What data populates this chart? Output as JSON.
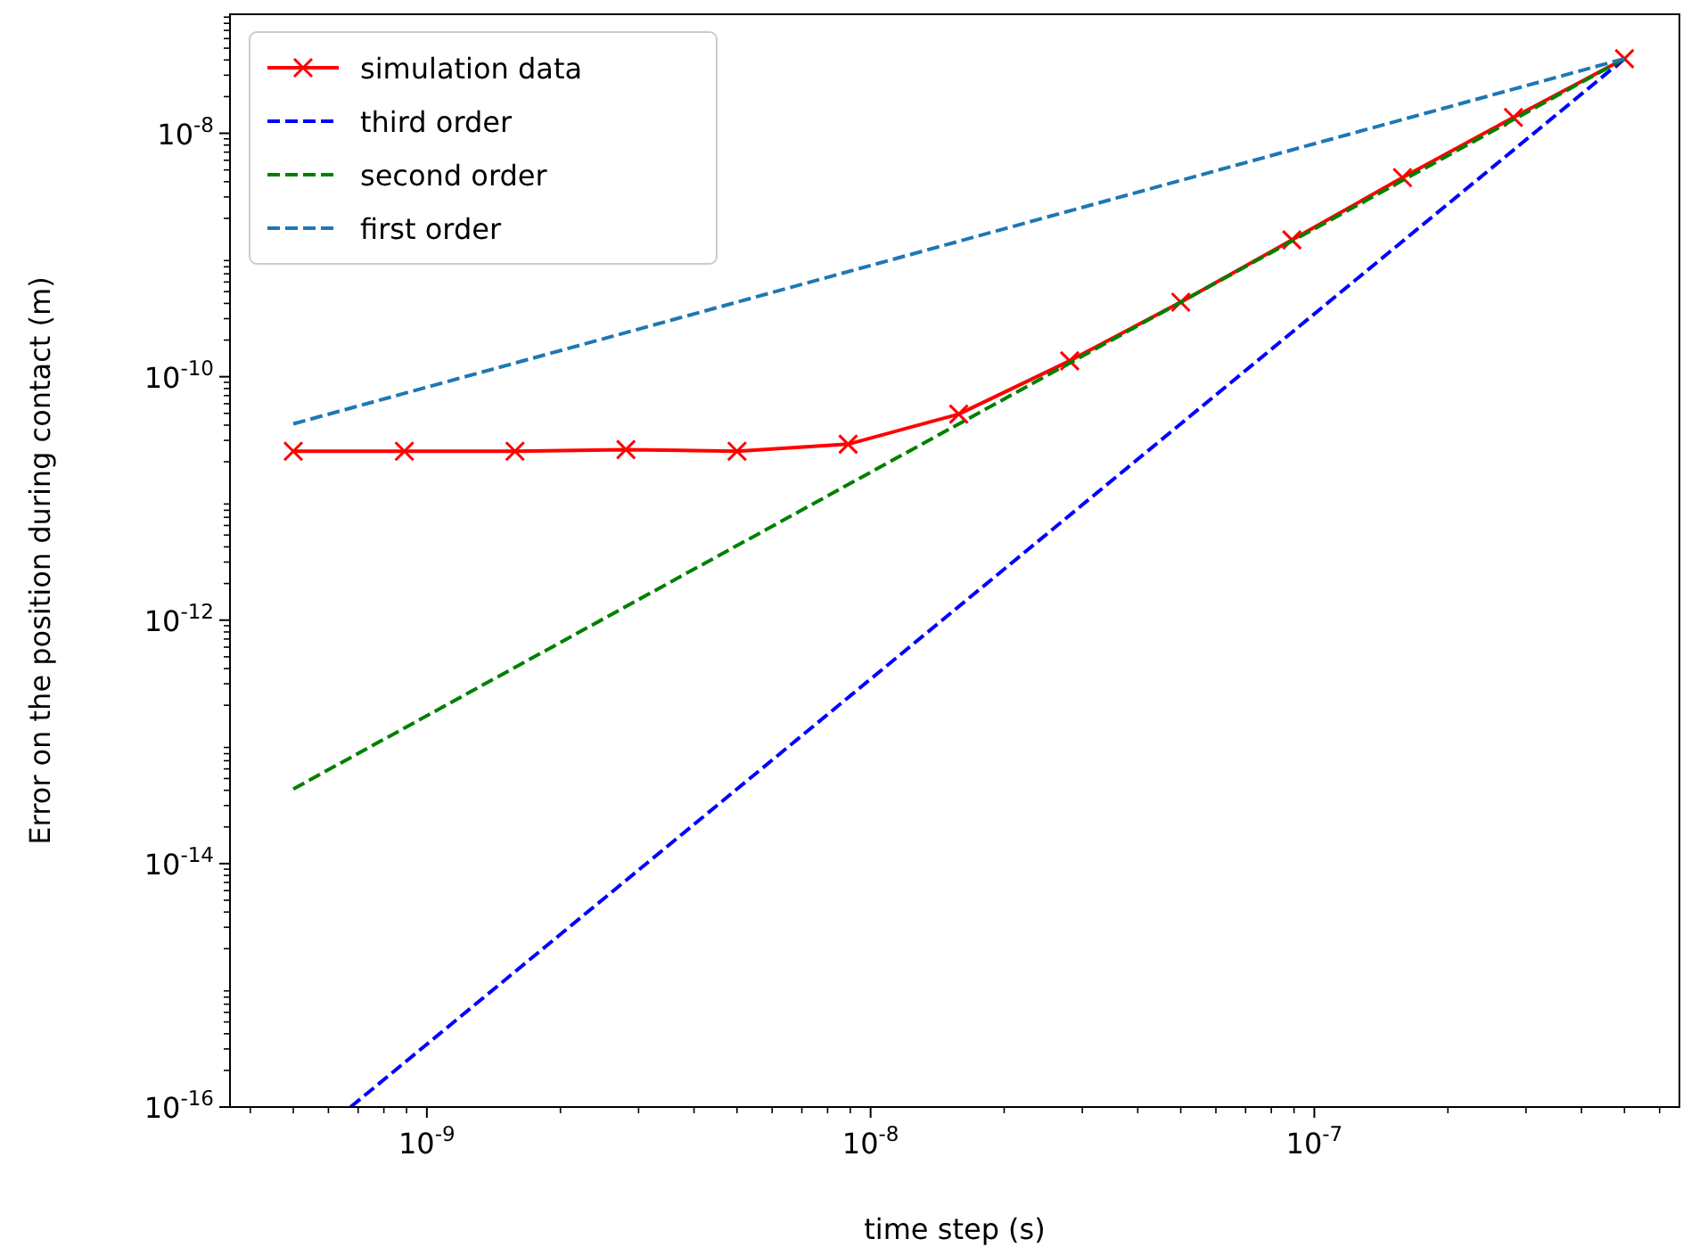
{
  "chart_data": {
    "type": "line",
    "xlabel": "time step (s)",
    "ylabel": "Error on the position during contact (m)",
    "log": "xy",
    "xlim": [
      3.6e-10,
      6.65e-07
    ],
    "ylim": [
      1e-16,
      9.5e-08
    ],
    "xticks": [
      {
        "value": 1e-09,
        "label": "10$^{-9}$"
      },
      {
        "value": 1e-08,
        "label": "10$^{-8}$"
      },
      {
        "value": 1e-07,
        "label": "10$^{-7}$"
      }
    ],
    "yticks": [
      {
        "value": 1e-16,
        "label": "10$^{-16}$"
      },
      {
        "value": 1e-14,
        "label": "10$^{-14}$"
      },
      {
        "value": 1e-12,
        "label": "10$^{-12}$"
      },
      {
        "value": 1e-10,
        "label": "10$^{-10}$"
      },
      {
        "value": 1e-08,
        "label": "10$^{-8}$"
      }
    ],
    "grid": false,
    "legend": "top left",
    "series": [
      {
        "name": "simulation data",
        "color": "#ff0000",
        "marker": "cross",
        "line_style": "solid",
        "x": [
          5e-10,
          8.9e-10,
          1.58e-09,
          2.81e-09,
          5e-09,
          8.9e-09,
          1.58e-08,
          2.81e-08,
          5e-08,
          8.9e-08,
          1.58e-07,
          2.81e-07,
          5e-07
        ],
        "values": [
          2.44e-11,
          2.44e-11,
          2.44e-11,
          2.52e-11,
          2.44e-11,
          2.79e-11,
          4.93e-11,
          1.35e-10,
          4.1e-10,
          1.33e-09,
          4.32e-09,
          1.35e-08,
          4.1e-08
        ]
      },
      {
        "name": "third order",
        "color": "#0000ff",
        "marker": "none",
        "line_style": "dashed",
        "x": [
          6.73e-10,
          5e-07
        ],
        "values": [
          1e-16,
          4.1e-08
        ]
      },
      {
        "name": "second order",
        "color": "#008000",
        "marker": "none",
        "line_style": "dashed",
        "x": [
          5e-10,
          5e-07
        ],
        "values": [
          4.1e-14,
          4.1e-08
        ]
      },
      {
        "name": "first order",
        "color": "#1f77b4",
        "marker": "none",
        "line_style": "dashed",
        "x": [
          5e-10,
          5e-07
        ],
        "values": [
          4.1e-11,
          4.1e-08
        ]
      }
    ]
  }
}
